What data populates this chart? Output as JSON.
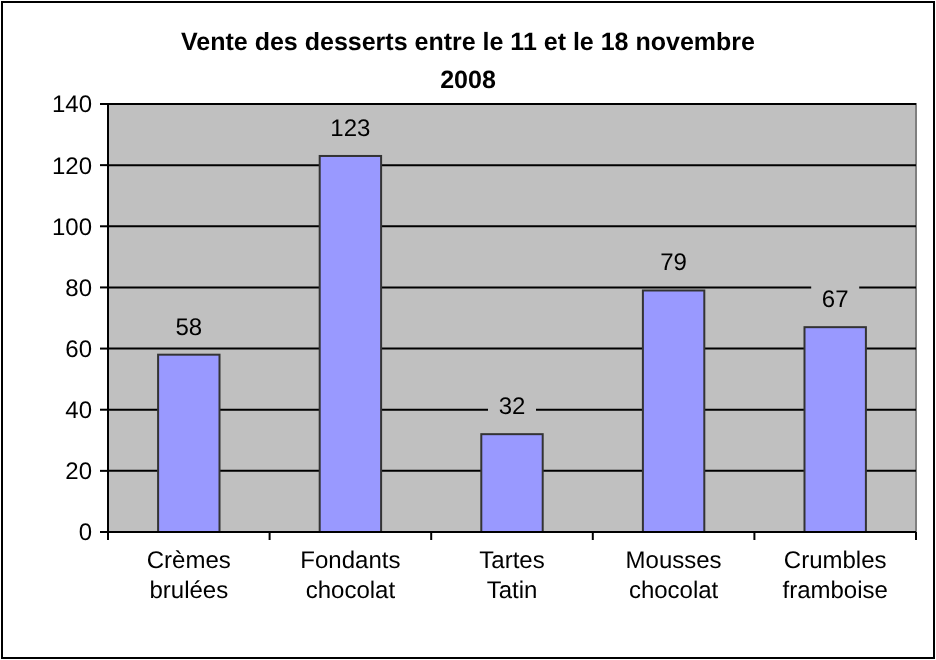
{
  "chart_data": {
    "type": "bar",
    "title": "Vente des desserts entre le 11 et le 18 novembre 2008",
    "categories": [
      "Crèmes brulées",
      "Fondants chocolat",
      "Tartes Tatin",
      "Mousses chocolat",
      "Crumbles framboise"
    ],
    "values": [
      58,
      123,
      32,
      79,
      67
    ],
    "color": "#9999ff",
    "ylim": [
      0,
      140
    ],
    "yticks": [
      0,
      20,
      40,
      60,
      80,
      100,
      120,
      140
    ],
    "grid": "y",
    "data_labels": true
  }
}
